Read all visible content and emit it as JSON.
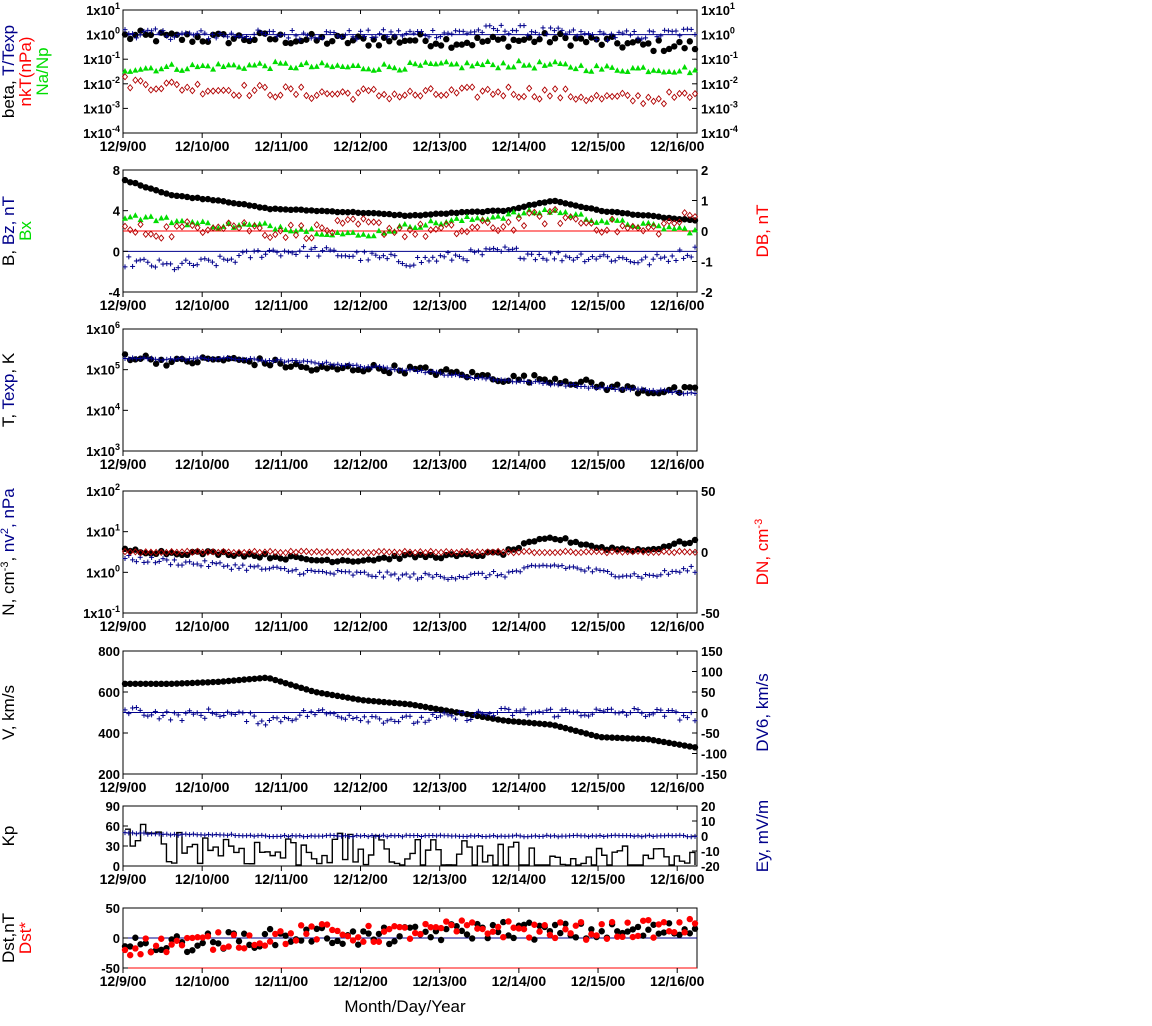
{
  "figure": {
    "xlabel": "Month/Day/Year",
    "x_start": "12/9/00",
    "x_end": "12/16/00",
    "x_ticks": [
      "12/9/00",
      "12/10/00",
      "12/11/00",
      "12/12/00",
      "12/13/00",
      "12/14/00",
      "12/15/00",
      "12/16/00"
    ]
  },
  "colors": {
    "black": "#000000",
    "red": "#ff0000",
    "darkred": "#b00000",
    "blue": "#00008b",
    "green": "#00dd00"
  },
  "chart_data": [
    {
      "id": "beta",
      "type": "scatter",
      "left_label_parts": [
        {
          "text": "beta, ",
          "color": "#000000"
        },
        {
          "text": "T/Texp",
          "color": "#00008b"
        },
        {
          "text": "nkT(nPa)",
          "color": "#ff0000",
          "line": 2
        },
        {
          "text": "Na/Np",
          "color": "#00dd00",
          "line": 3
        }
      ],
      "y_scale": "log",
      "ylim": [
        0.0001,
        10
      ],
      "left_ticks": [
        "1x10-4",
        "1x10-3",
        "1x10-2",
        "1x10-1",
        "1x100",
        "1x101"
      ],
      "right_ticks": [
        "1x10-4",
        "1x10-3",
        "1x10-2",
        "1x10-1",
        "1x100",
        "1x101"
      ],
      "ref_lines": [
        {
          "y": 1,
          "color": "#00008b"
        }
      ],
      "series": [
        {
          "marker": "dot",
          "color": "#000000",
          "start": 0.5,
          "trend": [
            0.85,
            0.75,
            0.7,
            0.72,
            0.6,
            0.55,
            0.65,
            0.5,
            0.55,
            0.7,
            0.5,
            0.35,
            0.35
          ],
          "amp": 0.25
        },
        {
          "marker": "plus",
          "color": "#00008b",
          "start": 1.2,
          "trend": [
            1.2,
            1.0,
            0.95,
            1.0,
            1.05,
            0.95,
            1.1,
            1.2,
            1.7,
            1.2,
            0.9,
            0.95,
            1.3
          ],
          "amp": 0.2
        },
        {
          "marker": "triangle",
          "color": "#00dd00",
          "start": 0.04,
          "trend": [
            0.04,
            0.045,
            0.05,
            0.055,
            0.05,
            0.045,
            0.05,
            0.055,
            0.06,
            0.055,
            0.04,
            0.04,
            0.035
          ],
          "amp": 0.15
        },
        {
          "marker": "diamond",
          "color": "#b00000",
          "start": 0.01,
          "trend": [
            0.012,
            0.008,
            0.006,
            0.005,
            0.004,
            0.004,
            0.0035,
            0.004,
            0.005,
            0.004,
            0.0025,
            0.0025,
            0.003
          ],
          "amp": 0.25
        }
      ]
    },
    {
      "id": "magnetic",
      "type": "scatter",
      "left_label_parts": [
        {
          "text": "B, ",
          "color": "#000000"
        },
        {
          "text": "Bz, nT",
          "color": "#00008b"
        },
        {
          "text": "Bx",
          "color": "#00dd00",
          "line": 2
        }
      ],
      "right_label": "DB, nT",
      "right_color": "#ff0000",
      "y_scale": "linear",
      "ylim": [
        -4,
        8
      ],
      "yticks": [
        -4,
        0,
        4,
        8
      ],
      "y2lim": [
        -2,
        2
      ],
      "y2ticks": [
        -2,
        -1,
        0,
        1,
        2
      ],
      "ref_lines": [
        {
          "y": 0,
          "color": "#00008b"
        },
        {
          "y2": 0,
          "color": "#ff0000"
        }
      ],
      "series": [
        {
          "marker": "dot",
          "color": "#000000",
          "start": 7.5,
          "trend": [
            7.0,
            5.5,
            5.0,
            4.2,
            4.0,
            3.8,
            3.5,
            3.8,
            4.0,
            5.0,
            4.0,
            3.5,
            3.0
          ],
          "amp": 0.08
        },
        {
          "marker": "plus",
          "color": "#00008b",
          "start": -2,
          "trend": [
            -1.0,
            -1.5,
            -1.0,
            0.0,
            0.0,
            -0.5,
            -1.0,
            -0.5,
            0.0,
            -0.5,
            -0.5,
            -1.0,
            0.0
          ],
          "amp": 0.9
        },
        {
          "marker": "triangle",
          "color": "#00dd00",
          "start": 4,
          "trend": [
            3.5,
            3.0,
            2.5,
            2.5,
            2.0,
            1.5,
            2.5,
            3.0,
            3.5,
            4.0,
            3.0,
            2.5,
            2.0
          ],
          "amp": 0.5
        },
        {
          "marker": "diamond",
          "color": "#b00000",
          "axis": "right",
          "start": 0,
          "trend": [
            0.0,
            0.0,
            0.3,
            0.0,
            0.0,
            0.2,
            0.0,
            0.0,
            0.2,
            0.5,
            0.2,
            0.0,
            0.5
          ],
          "amp": 0.25
        }
      ]
    },
    {
      "id": "temperature",
      "type": "scatter",
      "left_label_parts": [
        {
          "text": "T, ",
          "color": "#000000"
        },
        {
          "text": "Texp",
          "color": "#00008b"
        },
        {
          "text": ", K",
          "color": "#000000"
        }
      ],
      "y_scale": "log",
      "ylim": [
        1000,
        1000000
      ],
      "left_ticks": [
        "1x103",
        "1x104",
        "1x105",
        "1x106"
      ],
      "series": [
        {
          "marker": "dot",
          "color": "#000000",
          "start": 250000,
          "trend": [
            220000,
            150000,
            180000,
            150000,
            100000,
            110000,
            100000,
            80000,
            60000,
            60000,
            40000,
            30000,
            30000
          ],
          "amp": 0.1
        },
        {
          "marker": "plus",
          "color": "#00008b",
          "start": 200000,
          "trend": [
            190000,
            180000,
            190000,
            170000,
            150000,
            120000,
            100000,
            70000,
            55000,
            45000,
            35000,
            32000,
            25000
          ],
          "amp": 0.03
        }
      ]
    },
    {
      "id": "density",
      "type": "scatter",
      "left_label_parts": [
        {
          "text": "N, cm",
          "color": "#000000"
        },
        {
          "text": "-3",
          "color": "#000000",
          "sup": true
        },
        {
          "text": ", ",
          "color": "#000000"
        },
        {
          "text": "nv",
          "color": "#00008b"
        },
        {
          "text": "2",
          "color": "#00008b",
          "sup": true
        },
        {
          "text": ", nPa",
          "color": "#00008b"
        }
      ],
      "right_label": "DN, cm",
      "right_sup": "-3",
      "right_color": "#ff0000",
      "y_scale": "log",
      "ylim": [
        0.1,
        100
      ],
      "left_ticks": [
        "1x10-1",
        "1x100",
        "1x101",
        "1x102"
      ],
      "y2lim": [
        -50,
        50
      ],
      "y2ticks": [
        -50,
        0,
        50
      ],
      "series": [
        {
          "marker": "dot",
          "color": "#000000",
          "start": 3.5,
          "trend": [
            3.5,
            3.0,
            3.0,
            2.5,
            2.0,
            2.0,
            2.5,
            2.5,
            3.0,
            7.0,
            4.0,
            3.5,
            6.0
          ],
          "amp": 0.05
        },
        {
          "marker": "plus",
          "color": "#00008b",
          "start": 2.5,
          "trend": [
            2.2,
            1.8,
            1.5,
            1.2,
            1.0,
            0.9,
            0.8,
            0.8,
            0.9,
            1.5,
            1.0,
            0.8,
            1.2
          ],
          "amp": 0.08
        },
        {
          "marker": "diamond",
          "color": "#b00000",
          "axis": "right",
          "start": 0,
          "trend": [
            0,
            0,
            0,
            0,
            0,
            0,
            0,
            0,
            0,
            0,
            0,
            0,
            0
          ],
          "amp": 0.6
        }
      ]
    },
    {
      "id": "velocity",
      "type": "scatter",
      "left_label_parts": [
        {
          "text": "V, km/s",
          "color": "#000000"
        }
      ],
      "right_label": "DV6, km/s",
      "right_color": "#00008b",
      "y_scale": "linear",
      "ylim": [
        200,
        800
      ],
      "yticks": [
        200,
        400,
        600,
        800
      ],
      "y2lim": [
        -150,
        150
      ],
      "y2ticks": [
        -150,
        -100,
        -50,
        0,
        50,
        100,
        150
      ],
      "ref_lines": [
        {
          "y2": 0,
          "color": "#00008b"
        }
      ],
      "series": [
        {
          "marker": "dot",
          "color": "#000000",
          "start": 630,
          "trend": [
            640,
            640,
            650,
            670,
            600,
            560,
            540,
            500,
            460,
            440,
            380,
            370,
            330
          ],
          "amp": 0.005
        },
        {
          "marker": "plus",
          "color": "#00008b",
          "axis": "right",
          "start": 20,
          "trend": [
            10,
            -10,
            0,
            -20,
            0,
            -10,
            -20,
            -10,
            0,
            0,
            0,
            0,
            -10
          ],
          "amp": 12
        }
      ]
    },
    {
      "id": "kp",
      "type": "line",
      "left_label_parts": [
        {
          "text": "Kp",
          "color": "#000000"
        }
      ],
      "right_label": "Ey, mV/m",
      "right_color": "#00008b",
      "y_scale": "linear",
      "ylim": [
        0,
        90
      ],
      "yticks": [
        0,
        30,
        60,
        90
      ],
      "y2lim": [
        -20,
        20
      ],
      "y2ticks": [
        -20,
        -10,
        0,
        10,
        20
      ],
      "series": [
        {
          "marker": "step",
          "color": "#000000",
          "start": 40,
          "trend": [
            40,
            30,
            30,
            20,
            25,
            20,
            15,
            20,
            10,
            5,
            5,
            5,
            5
          ],
          "amp": 6
        },
        {
          "marker": "plus",
          "color": "#00008b",
          "axis": "right",
          "start": 2,
          "trend": [
            2,
            1,
            1,
            0,
            0,
            0,
            0,
            0,
            0,
            0,
            0,
            0,
            0
          ],
          "amp": 0.5
        }
      ]
    },
    {
      "id": "dst",
      "type": "scatter",
      "left_label_parts": [
        {
          "text": "Dst,nT",
          "color": "#000000"
        },
        {
          "text": "Dst*",
          "color": "#ff0000",
          "line": 2
        }
      ],
      "y_scale": "linear",
      "ylim": [
        -50,
        50
      ],
      "yticks": [
        -50,
        0,
        50
      ],
      "ref_lines": [
        {
          "y": 0,
          "color": "#00008b"
        },
        {
          "y": -50,
          "color": "#ff0000"
        }
      ],
      "series": [
        {
          "marker": "dot",
          "color": "#000000",
          "start": -10,
          "trend": [
            -15,
            -10,
            -5,
            0,
            5,
            0,
            5,
            10,
            15,
            10,
            10,
            10,
            15
          ],
          "amp": 3
        },
        {
          "marker": "dot",
          "color": "#ff0000",
          "start": -10,
          "trend": [
            -15,
            -10,
            -5,
            0,
            10,
            5,
            10,
            15,
            15,
            12,
            12,
            15,
            18
          ],
          "amp": 3
        }
      ]
    }
  ]
}
